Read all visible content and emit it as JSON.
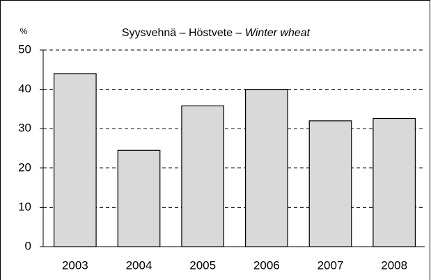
{
  "chart_data": {
    "type": "bar",
    "title": "Syysvehnä – Höstvete – ",
    "title_italic": "Winter wheat",
    "y_label": "%",
    "categories": [
      "2003",
      "2004",
      "2005",
      "2006",
      "2007",
      "2008"
    ],
    "values": [
      44,
      24.5,
      35.8,
      40,
      32,
      32.6
    ],
    "color": "#d9d9d9",
    "ylim": [
      0,
      50
    ],
    "yticks": [
      0,
      10,
      20,
      30,
      40,
      50
    ],
    "grid": true
  }
}
